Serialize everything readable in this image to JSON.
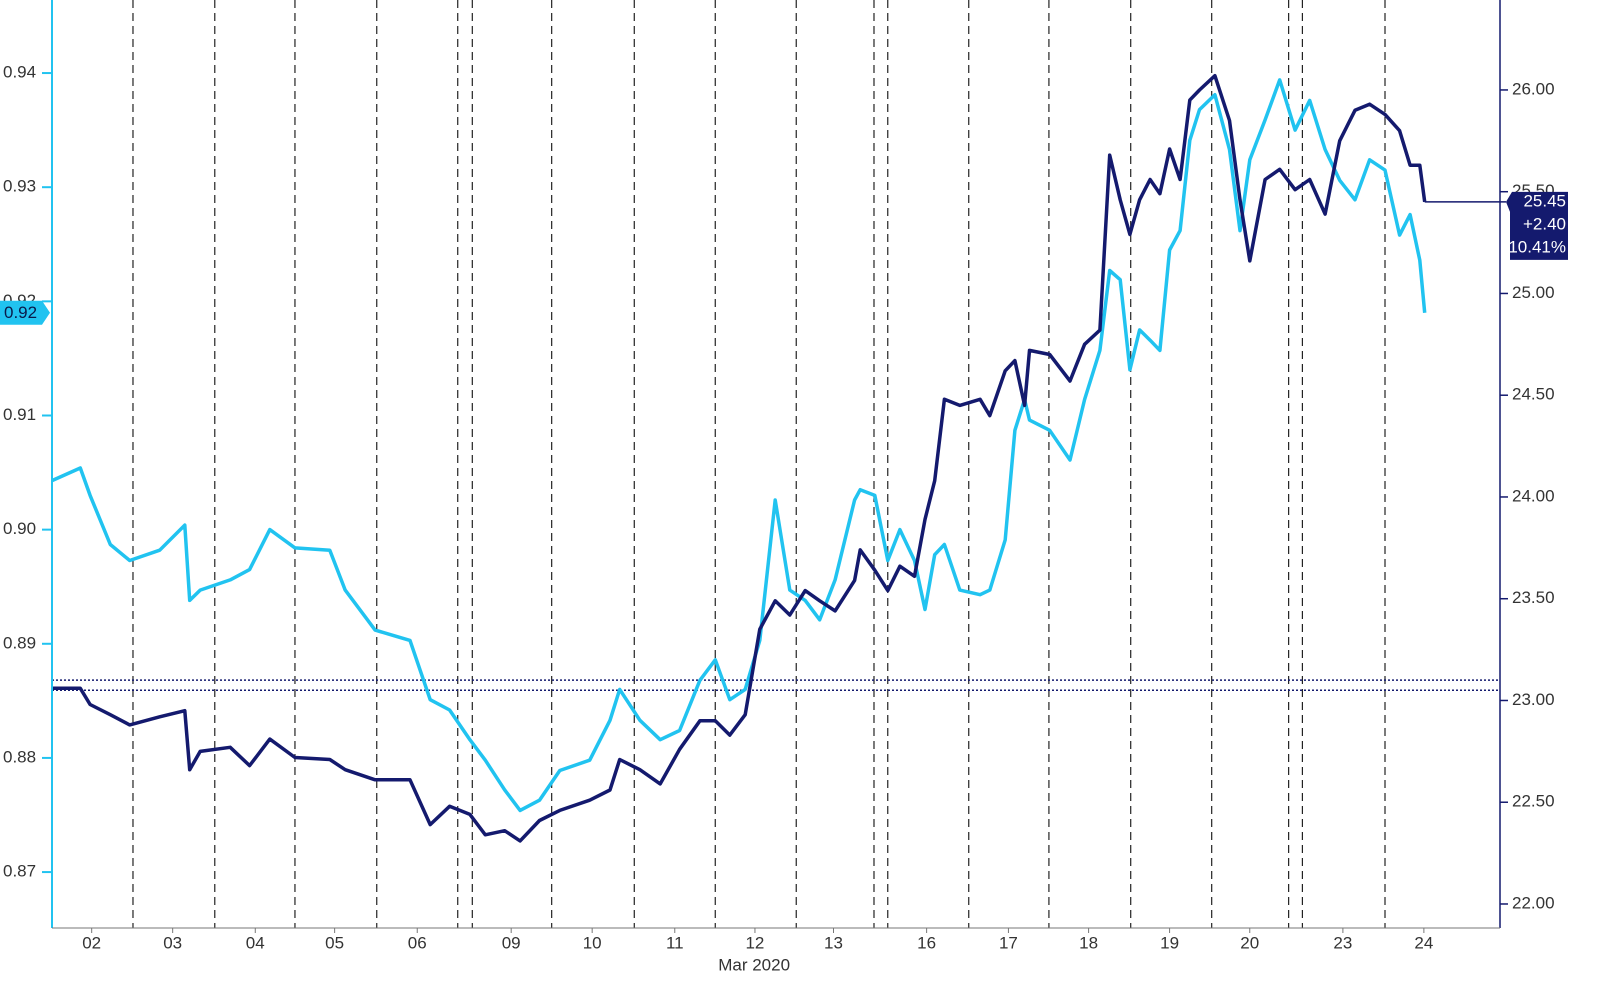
{
  "chart_data": {
    "type": "line",
    "xlabel": "Mar 2020",
    "xlim": [
      0,
      17.88
    ],
    "xticks": [
      {
        "value": 0.49,
        "label": "02"
      },
      {
        "value": 1.49,
        "label": "03"
      },
      {
        "value": 2.51,
        "label": "04"
      },
      {
        "value": 3.49,
        "label": "05"
      },
      {
        "value": 4.51,
        "label": "06"
      },
      {
        "value": 5.67,
        "label": "09"
      },
      {
        "value": 6.67,
        "label": "10"
      },
      {
        "value": 7.69,
        "label": "11"
      },
      {
        "value": 8.68,
        "label": "12"
      },
      {
        "value": 9.65,
        "label": "13"
      },
      {
        "value": 10.8,
        "label": "16"
      },
      {
        "value": 11.81,
        "label": "17"
      },
      {
        "value": 12.8,
        "label": "18"
      },
      {
        "value": 13.8,
        "label": "19"
      },
      {
        "value": 14.79,
        "label": "20"
      },
      {
        "value": 15.94,
        "label": "23"
      },
      {
        "value": 16.94,
        "label": "24"
      }
    ],
    "day_separators": [
      1.0,
      2.01,
      3.0,
      4.01,
      5.01,
      5.19,
      6.17,
      7.19,
      8.19,
      9.19,
      10.15,
      10.32,
      11.32,
      12.31,
      13.32,
      14.32,
      15.27,
      15.44,
      16.46
    ],
    "ylim": [
      0.8651,
      0.9464
    ],
    "yticks": [
      0.87,
      0.88,
      0.89,
      {
        "value": 0.9,
        "label": "0.90"
      },
      0.91,
      0.92,
      0.93,
      0.94
    ],
    "y2lim": [
      21.882,
      26.442
    ],
    "y2ticks": [
      {
        "value": 22,
        "label": "22.00"
      },
      {
        "value": 22.5,
        "label": "22.50"
      },
      {
        "value": 23,
        "label": "23.00"
      },
      {
        "value": 23.5,
        "label": "23.50"
      },
      {
        "value": 24,
        "label": "24.00"
      },
      {
        "value": 24.5,
        "label": "24.50"
      },
      {
        "value": 25,
        "label": "25.00"
      },
      {
        "value": 25.5,
        "label": "25.50"
      },
      {
        "value": 26,
        "label": "26.00"
      }
    ],
    "reference_lines": [
      23.1,
      23.05
    ],
    "x": [
      0,
      0.35,
      0.47,
      0.72,
      0.96,
      1.33,
      1.64,
      1.7,
      1.83,
      2.2,
      2.44,
      2.69,
      3.0,
      3.43,
      3.62,
      3.99,
      4.42,
      4.67,
      4.91,
      5.16,
      5.35,
      5.59,
      5.78,
      6.02,
      6.27,
      6.64,
      6.89,
      7.01,
      7.26,
      7.51,
      7.75,
      8.0,
      8.19,
      8.37,
      8.56,
      8.74,
      8.93,
      9.11,
      9.3,
      9.48,
      9.67,
      9.91,
      9.98,
      10.16,
      10.32,
      10.47,
      10.65,
      10.78,
      10.9,
      11.02,
      11.21,
      11.46,
      11.58,
      11.77,
      11.89,
      12.01,
      12.07,
      12.32,
      12.57,
      12.75,
      12.94,
      13.06,
      13.19,
      13.31,
      13.43,
      13.56,
      13.68,
      13.8,
      13.93,
      14.05,
      14.17,
      14.36,
      14.54,
      14.67,
      14.79,
      14.98,
      15.16,
      15.35,
      15.53,
      15.72,
      15.9,
      16.09,
      16.27,
      16.46,
      16.64,
      16.77,
      16.89,
      16.95
    ],
    "series": [
      {
        "color": "#21c3f0",
        "axis": "y",
        "last_label": "0.92",
        "values": [
          0.9043,
          0.9054,
          0.903,
          0.8987,
          0.8973,
          0.8982,
          0.9004,
          0.8938,
          0.8947,
          0.8956,
          0.8965,
          0.9,
          0.8984,
          0.8982,
          0.8947,
          0.8912,
          0.8903,
          0.8851,
          0.8842,
          0.8816,
          0.8798,
          0.8772,
          0.8754,
          0.8763,
          0.8789,
          0.8798,
          0.8833,
          0.886,
          0.8833,
          0.8816,
          0.8824,
          0.8868,
          0.8886,
          0.8851,
          0.886,
          0.8903,
          0.9026,
          0.8947,
          0.8938,
          0.8921,
          0.8956,
          0.9026,
          0.9035,
          0.903,
          0.8973,
          0.9,
          0.8973,
          0.893,
          0.8978,
          0.8987,
          0.8947,
          0.8943,
          0.8947,
          0.8991,
          0.9087,
          0.9114,
          0.9096,
          0.9087,
          0.9061,
          0.9114,
          0.9157,
          0.9227,
          0.9219,
          0.914,
          0.9175,
          0.9166,
          0.9157,
          0.9245,
          0.9262,
          0.9341,
          0.9368,
          0.9381,
          0.9333,
          0.9262,
          0.9324,
          0.9359,
          0.9394,
          0.935,
          0.9376,
          0.9333,
          0.9306,
          0.9289,
          0.9324,
          0.9315,
          0.9258,
          0.9276,
          0.9236,
          0.919
        ]
      },
      {
        "color": "#141a6e",
        "axis": "y2",
        "last_label": "25.45",
        "change_label": "+2.40",
        "change_pct_label": "10.41%",
        "values": [
          23.06,
          23.06,
          22.98,
          22.93,
          22.88,
          22.92,
          22.95,
          22.66,
          22.75,
          22.77,
          22.68,
          22.81,
          22.72,
          22.71,
          22.66,
          22.61,
          22.61,
          22.39,
          22.48,
          22.44,
          22.34,
          22.36,
          22.31,
          22.41,
          22.46,
          22.51,
          22.56,
          22.71,
          22.66,
          22.59,
          22.76,
          22.9,
          22.9,
          22.83,
          22.93,
          23.35,
          23.49,
          23.42,
          23.54,
          23.49,
          23.44,
          23.59,
          23.74,
          23.64,
          23.54,
          23.66,
          23.61,
          23.89,
          24.08,
          24.48,
          24.45,
          24.48,
          24.4,
          24.62,
          24.67,
          24.45,
          24.72,
          24.7,
          24.57,
          24.75,
          24.82,
          25.68,
          25.46,
          25.29,
          25.46,
          25.56,
          25.49,
          25.71,
          25.56,
          25.95,
          26.0,
          26.07,
          25.85,
          25.46,
          25.16,
          25.56,
          25.61,
          25.51,
          25.56,
          25.39,
          25.75,
          25.9,
          25.93,
          25.88,
          25.8,
          25.63,
          25.63,
          25.45
        ]
      }
    ]
  }
}
